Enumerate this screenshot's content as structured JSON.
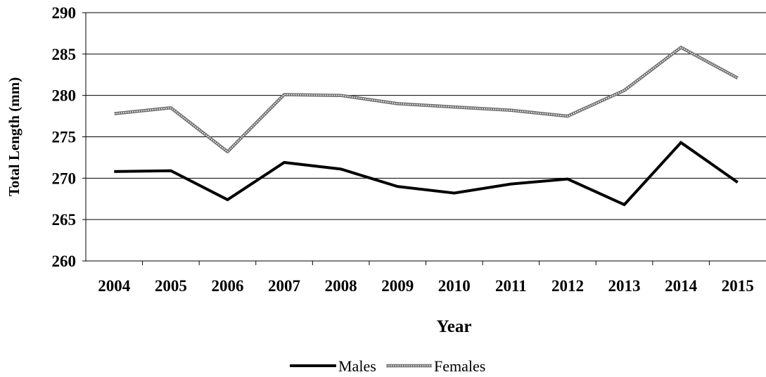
{
  "chart_data": {
    "type": "line",
    "title": "",
    "xlabel": "Year",
    "ylabel": "Total Length (mm)",
    "ylim": [
      260,
      290
    ],
    "yticks": [
      260,
      265,
      270,
      275,
      280,
      285,
      290
    ],
    "grid": true,
    "legend_position": "bottom",
    "categories": [
      "2004",
      "2005",
      "2006",
      "2007",
      "2008",
      "2009",
      "2010",
      "2011",
      "2012",
      "2013",
      "2014",
      "2015"
    ],
    "series": [
      {
        "name": "Males",
        "style": "solid",
        "color": "#000000",
        "values": [
          270.8,
          270.9,
          267.4,
          271.9,
          271.1,
          269.0,
          268.2,
          269.3,
          269.9,
          266.8,
          274.3,
          269.5
        ]
      },
      {
        "name": "Females",
        "style": "dotted",
        "color": "#6e6e6e",
        "values": [
          277.8,
          278.5,
          273.2,
          280.1,
          280.0,
          279.0,
          278.6,
          278.2,
          277.5,
          280.6,
          285.8,
          282.1
        ]
      }
    ]
  }
}
